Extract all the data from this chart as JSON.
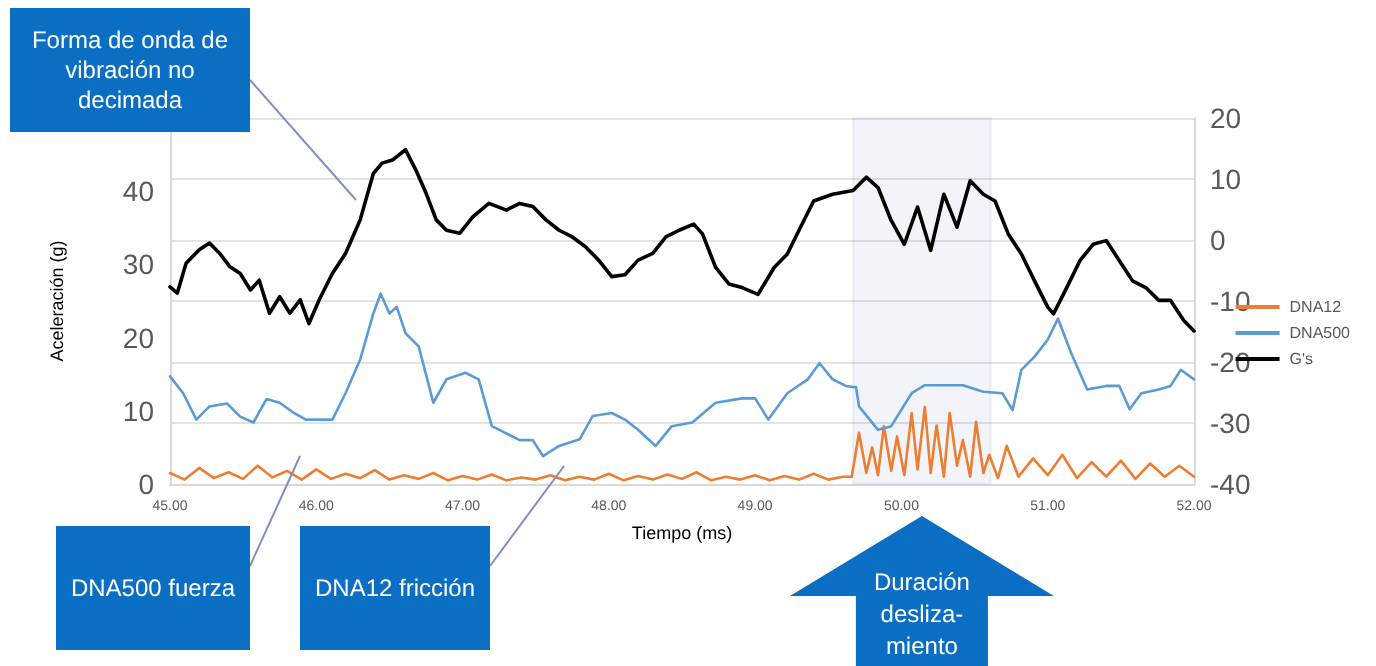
{
  "chart_data": {
    "type": "line",
    "xlabel": "Tiempo (ms)",
    "ylabel": "Aceleración (g)",
    "xlim": [
      45,
      52
    ],
    "xticks": [
      {
        "value": 45,
        "label": "45.00"
      },
      {
        "value": 46,
        "label": "46.00"
      },
      {
        "value": 47,
        "label": "47.00"
      },
      {
        "value": 48,
        "label": "48.00"
      },
      {
        "value": 49,
        "label": "49.00"
      },
      {
        "value": 50,
        "label": "50.00"
      },
      {
        "value": 51,
        "label": "51.00"
      },
      {
        "value": 52,
        "label": "52.00"
      }
    ],
    "ylim": [
      0,
      50
    ],
    "yticks": [
      0,
      10,
      20,
      30,
      40
    ],
    "y2lim": [
      -40,
      20
    ],
    "y2ticks": [
      -40,
      -30,
      -20,
      -10,
      0,
      10,
      20
    ],
    "grid": "y",
    "legend": "right",
    "marker": "none",
    "line_style": "solid",
    "series": [
      {
        "name": "DNA12",
        "color": "#ed7d31",
        "x": [
          45.0,
          45.1,
          45.2,
          45.3,
          45.4,
          45.5,
          45.6,
          45.7,
          45.8,
          45.9,
          46.0,
          46.1,
          46.2,
          46.3,
          46.4,
          46.5,
          46.6,
          46.7,
          46.8,
          46.9,
          47.0,
          47.1,
          47.2,
          47.3,
          47.4,
          47.5,
          47.6,
          47.7,
          47.8,
          47.9,
          48.0,
          48.1,
          48.2,
          48.3,
          48.4,
          48.5,
          48.6,
          48.7,
          48.8,
          48.9,
          49.0,
          49.1,
          49.2,
          49.3,
          49.4,
          49.5,
          49.6,
          49.66,
          49.71,
          49.76,
          49.8,
          49.84,
          49.88,
          49.93,
          49.97,
          50.02,
          50.07,
          50.11,
          50.16,
          50.2,
          50.24,
          50.29,
          50.33,
          50.38,
          50.42,
          50.47,
          50.51,
          50.56,
          50.6,
          50.66,
          50.72,
          50.8,
          50.9,
          51.0,
          51.1,
          51.2,
          51.3,
          51.4,
          51.5,
          51.6,
          51.7,
          51.8,
          51.9,
          52.0
        ],
        "values": [
          1.5,
          0.6,
          2.2,
          0.8,
          1.6,
          0.7,
          2.5,
          0.9,
          1.8,
          0.6,
          2.0,
          0.7,
          1.4,
          0.8,
          1.9,
          0.6,
          1.2,
          0.7,
          1.5,
          0.5,
          1.1,
          0.6,
          1.3,
          0.5,
          0.9,
          0.6,
          1.2,
          0.5,
          1.0,
          0.6,
          1.4,
          0.5,
          1.1,
          0.6,
          1.3,
          0.7,
          1.6,
          0.5,
          1.0,
          0.6,
          1.2,
          0.5,
          1.1,
          0.6,
          1.4,
          0.6,
          1.0,
          1.0,
          7.0,
          1.5,
          5.0,
          1.2,
          7.9,
          1.8,
          6.5,
          1.2,
          9.7,
          2.0,
          10.5,
          1.5,
          8.0,
          1.0,
          9.7,
          2.5,
          6.0,
          1.0,
          8.5,
          1.5,
          4.0,
          0.8,
          5.2,
          1.0,
          3.5,
          1.2,
          4.0,
          0.8,
          3.0,
          1.0,
          3.2,
          0.7,
          2.8,
          1.0,
          2.5,
          1.0
        ]
      },
      {
        "name": "DNA500",
        "color": "#5b9bd5",
        "x": [
          45.0,
          45.09,
          45.18,
          45.27,
          45.39,
          45.48,
          45.57,
          45.66,
          45.75,
          45.84,
          45.93,
          46.11,
          46.2,
          46.3,
          46.39,
          46.44,
          46.5,
          46.55,
          46.61,
          46.7,
          46.8,
          46.89,
          47.02,
          47.11,
          47.2,
          47.39,
          47.48,
          47.55,
          47.66,
          47.8,
          47.89,
          48.02,
          48.11,
          48.2,
          48.32,
          48.43,
          48.57,
          48.73,
          48.91,
          49.0,
          49.09,
          49.22,
          49.36,
          49.44,
          49.53,
          49.62,
          49.69,
          49.71,
          49.84,
          49.93,
          50.07,
          50.16,
          50.42,
          50.56,
          50.69,
          50.76,
          50.82,
          50.91,
          51.0,
          51.07,
          51.16,
          51.27,
          51.4,
          51.49,
          51.56,
          51.64,
          51.76,
          51.84,
          51.91,
          52.0
        ],
        "values": [
          14.7,
          12.4,
          8.8,
          10.6,
          11.0,
          9.2,
          8.4,
          11.6,
          11.1,
          9.8,
          8.8,
          8.8,
          12.4,
          17.0,
          23.3,
          26.0,
          23.3,
          24.2,
          20.6,
          18.8,
          11.1,
          14.3,
          15.2,
          14.3,
          7.9,
          6.0,
          6.0,
          3.8,
          5.2,
          6.1,
          9.3,
          9.7,
          8.8,
          7.4,
          5.2,
          7.9,
          8.4,
          11.1,
          11.7,
          11.7,
          8.8,
          12.4,
          14.3,
          16.5,
          14.3,
          13.4,
          13.2,
          10.6,
          7.4,
          7.9,
          12.4,
          13.5,
          13.5,
          12.6,
          12.4,
          10.1,
          15.6,
          17.4,
          19.7,
          22.6,
          17.9,
          12.9,
          13.4,
          13.4,
          10.2,
          12.4,
          12.9,
          13.4,
          15.6,
          14.3
        ]
      },
      {
        "name": "G's",
        "color": "#000000",
        "axis": "y2",
        "x": [
          45.0,
          45.05,
          45.11,
          45.2,
          45.27,
          45.34,
          45.41,
          45.48,
          45.55,
          45.61,
          45.68,
          45.75,
          45.82,
          45.89,
          45.95,
          46.02,
          46.11,
          46.2,
          46.3,
          46.39,
          46.45,
          46.52,
          46.61,
          46.68,
          46.75,
          46.82,
          46.89,
          46.98,
          47.07,
          47.18,
          47.3,
          47.39,
          47.48,
          47.57,
          47.66,
          47.75,
          47.84,
          47.93,
          48.02,
          48.11,
          48.2,
          48.3,
          48.39,
          48.48,
          48.58,
          48.64,
          48.73,
          48.82,
          48.91,
          49.02,
          49.13,
          49.22,
          49.31,
          49.4,
          49.53,
          49.67,
          49.76,
          49.84,
          49.93,
          50.02,
          50.11,
          50.2,
          50.29,
          50.38,
          50.47,
          50.56,
          50.64,
          50.73,
          50.82,
          50.91,
          51.0,
          51.04,
          51.13,
          51.22,
          51.31,
          51.4,
          51.49,
          51.58,
          51.67,
          51.76,
          51.84,
          51.93,
          52.0
        ],
        "values": [
          -7.7,
          -8.7,
          -3.8,
          -1.6,
          -0.5,
          -2.2,
          -4.4,
          -5.5,
          -8.2,
          -6.6,
          -12.0,
          -9.3,
          -12.0,
          -9.8,
          -13.7,
          -9.8,
          -5.5,
          -2.2,
          3.3,
          10.9,
          12.6,
          13.1,
          14.8,
          11.5,
          7.7,
          3.3,
          1.6,
          1.1,
          3.8,
          6.0,
          4.9,
          6.0,
          5.5,
          3.3,
          1.6,
          0.5,
          -1.1,
          -3.3,
          -6.0,
          -5.7,
          -3.3,
          -2.2,
          0.5,
          1.6,
          2.6,
          1.0,
          -4.5,
          -7.2,
          -7.8,
          -8.9,
          -4.5,
          -2.3,
          2.1,
          6.4,
          7.5,
          8.1,
          10.3,
          8.6,
          3.2,
          -0.7,
          5.4,
          -1.7,
          7.5,
          2.1,
          9.7,
          7.5,
          6.4,
          1.0,
          -2.3,
          -6.7,
          -11.0,
          -12.1,
          -7.8,
          -3.4,
          -0.7,
          -0.1,
          -3.4,
          -6.7,
          -7.8,
          -9.9,
          -9.9,
          -13.2,
          -14.9
        ]
      }
    ],
    "bands": [
      {
        "axis": "x",
        "from": 49.67,
        "to": 50.61,
        "color": "#8497c9"
      }
    ],
    "annotations": [
      "Forma de onda de vibración no decimada",
      "DNA500 fuerza",
      "DNA12 fricción",
      "Duración desliza-miento"
    ]
  }
}
